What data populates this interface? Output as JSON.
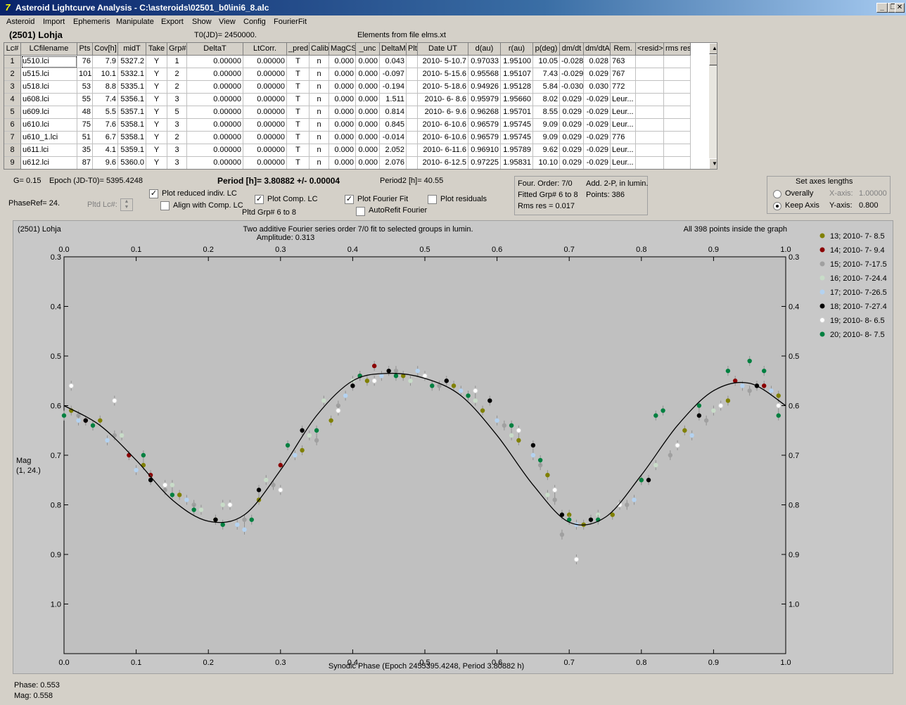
{
  "window": {
    "title": "Asteroid Lightcurve Analysis - C:\\asteroids\\02501_b0\\ini6_8.alc",
    "app_icon": "7",
    "min": "_",
    "max": "❐",
    "close": "✕"
  },
  "menu": [
    "Asteroid",
    "Import",
    "Ephemeris",
    "Manipulate",
    "Export",
    "Show",
    "View",
    "Config",
    "FourierFit"
  ],
  "header": {
    "object": "(2501) Lohja",
    "t0": "T0(JD)= 2450000.",
    "elements": "Elements from file elms.xt"
  },
  "table": {
    "columns": [
      "Lc#",
      "LCfilename",
      "Pts",
      "Cov[h]",
      "midT",
      "Take",
      "Grp#",
      "DeltaT",
      "LtCorr.",
      "_pred.",
      "Calib.",
      "MagCS",
      "_unc",
      "DeltaM",
      "Plt",
      "Date UT",
      "d(au)",
      "r(au)",
      "p(deg)",
      "dm/dt",
      "dm/dtA",
      "Rem.",
      "<resid>",
      "rms res"
    ],
    "rows": [
      [
        "1",
        "u510.lci",
        "76",
        "7.9",
        "5327.2",
        "Y",
        "1",
        "0.00000",
        "0.00000",
        "T",
        "n",
        "0.000",
        "0.000",
        "0.043",
        "",
        "2010- 5-10.7",
        "0.97033",
        "1.95100",
        "10.05",
        "-0.028",
        "0.028",
        "763",
        "",
        ""
      ],
      [
        "2",
        "u515.lci",
        "101",
        "10.1",
        "5332.1",
        "Y",
        "2",
        "0.00000",
        "0.00000",
        "T",
        "n",
        "0.000",
        "0.000",
        "-0.097",
        "",
        "2010- 5-15.6",
        "0.95568",
        "1.95107",
        "7.43",
        "-0.029",
        "0.029",
        "767",
        "",
        ""
      ],
      [
        "3",
        "u518.lci",
        "53",
        "8.8",
        "5335.1",
        "Y",
        "2",
        "0.00000",
        "0.00000",
        "T",
        "n",
        "0.000",
        "0.000",
        "-0.194",
        "",
        "2010- 5-18.6",
        "0.94926",
        "1.95128",
        "5.84",
        "-0.030",
        "0.030",
        "772",
        "",
        ""
      ],
      [
        "4",
        "u608.lci",
        "55",
        "7.4",
        "5356.1",
        "Y",
        "3",
        "0.00000",
        "0.00000",
        "T",
        "n",
        "0.000",
        "0.000",
        "1.511",
        "",
        "2010- 6- 8.6",
        "0.95979",
        "1.95660",
        "8.02",
        "0.029",
        "-0.029",
        "Leur...",
        "",
        ""
      ],
      [
        "5",
        "u609.lci",
        "48",
        "5.5",
        "5357.1",
        "Y",
        "5",
        "0.00000",
        "0.00000",
        "T",
        "n",
        "0.000",
        "0.000",
        "0.814",
        "",
        "2010- 6- 9.6",
        "0.96268",
        "1.95701",
        "8.55",
        "0.029",
        "-0.029",
        "Leur...",
        "",
        ""
      ],
      [
        "6",
        "u610.lci",
        "75",
        "7.6",
        "5358.1",
        "Y",
        "3",
        "0.00000",
        "0.00000",
        "T",
        "n",
        "0.000",
        "0.000",
        "0.845",
        "",
        "2010- 6-10.6",
        "0.96579",
        "1.95745",
        "9.09",
        "0.029",
        "-0.029",
        "Leur...",
        "",
        ""
      ],
      [
        "7",
        "u610_1.lci",
        "51",
        "6.7",
        "5358.1",
        "Y",
        "2",
        "0.00000",
        "0.00000",
        "T",
        "n",
        "0.000",
        "0.000",
        "-0.014",
        "",
        "2010- 6-10.6",
        "0.96579",
        "1.95745",
        "9.09",
        "0.029",
        "-0.029",
        "776",
        "",
        ""
      ],
      [
        "8",
        "u611.lci",
        "35",
        "4.1",
        "5359.1",
        "Y",
        "3",
        "0.00000",
        "0.00000",
        "T",
        "n",
        "0.000",
        "0.000",
        "2.052",
        "",
        "2010- 6-11.6",
        "0.96910",
        "1.95789",
        "9.62",
        "0.029",
        "-0.029",
        "Leur...",
        "",
        ""
      ],
      [
        "9",
        "u612.lci",
        "87",
        "9.6",
        "5360.0",
        "Y",
        "3",
        "0.00000",
        "0.00000",
        "T",
        "n",
        "0.000",
        "0.000",
        "2.076",
        "",
        "2010- 6-12.5",
        "0.97225",
        "1.95831",
        "10.10",
        "0.029",
        "-0.029",
        "Leur...",
        "",
        ""
      ]
    ]
  },
  "params": {
    "g": "G= 0.15",
    "epoch": "Epoch (JD-T0)= 5395.4248",
    "period": "Period [h]= 3.80882 +/- 0.00004",
    "period2": "Period2 [h]= 40.55",
    "phaseref": "PhaseRef= 24.",
    "pltd_lc": "Pltd Lc#:"
  },
  "options": {
    "plot_reduced": {
      "label": "Plot reduced indiv. LC",
      "checked": true
    },
    "align_comp": {
      "label": "Align with Comp. LC",
      "checked": false
    },
    "plot_comp": {
      "label": "Plot Comp. LC",
      "checked": true
    },
    "pltd_grp": "Pltd Grp#  6  to   8",
    "plot_fourier": {
      "label": "Plot Fourier Fit",
      "checked": true
    },
    "autorefit": {
      "label": "AutoRefit Fourier",
      "checked": false
    },
    "plot_residuals": {
      "label": "Plot residuals",
      "checked": false
    }
  },
  "fourier_info": {
    "order": "Four. Order:  7/0",
    "add": "Add. 2-P, in lumin.",
    "fitted": "Fitted Grp# 6 to 8",
    "points": "Points: 386",
    "rms": "Rms res     = 0.017"
  },
  "axes_box": {
    "title": "Set axes lengths",
    "overally": "Overally",
    "keep_axis": "Keep Axis",
    "x_axis_label": "X-axis:",
    "x_axis_value": "1.00000",
    "y_axis_label": "Y-axis:",
    "y_axis_value": "0.800",
    "selected": "keep_axis"
  },
  "plot": {
    "object": "(2501) Lohja",
    "fit_title": "Two additive Fourier series order 7/0 fit to selected groups in lumin.",
    "amplitude": "Amplitude: 0.313",
    "points_inside": "All 398 points inside the graph",
    "ylabel1": "Mag",
    "ylabel2": "(1, 24.)",
    "xlabel": "Synodic Phase (Epoch 2455395.4248, Period 3.80882 h)"
  },
  "status": {
    "phase": "Phase:  0.553",
    "mag": "Mag:   0.558"
  },
  "chart_data": {
    "type": "scatter",
    "xlabel": "Synodic Phase (Epoch 2455395.4248, Period 3.80882 h)",
    "ylabel": "Mag",
    "xlim": [
      0.0,
      1.0
    ],
    "ylim": [
      0.3,
      1.1
    ],
    "y_inverted": true,
    "x_ticks": [
      "0.0",
      "0.1",
      "0.2",
      "0.3",
      "0.4",
      "0.5",
      "0.6",
      "0.7",
      "0.8",
      "0.9",
      "1.0"
    ],
    "y_ticks": [
      "0.3",
      "0.4",
      "0.5",
      "0.6",
      "0.7",
      "0.8",
      "0.9",
      "1.0"
    ],
    "legend_position": "right",
    "series": [
      {
        "name": "13; 2010- 7- 8.5",
        "color": "#808000",
        "points": [
          [
            0.01,
            0.61
          ],
          [
            0.05,
            0.63
          ],
          [
            0.11,
            0.72
          ],
          [
            0.16,
            0.78
          ],
          [
            0.21,
            0.83
          ],
          [
            0.27,
            0.79
          ],
          [
            0.33,
            0.69
          ],
          [
            0.37,
            0.63
          ],
          [
            0.42,
            0.55
          ],
          [
            0.47,
            0.54
          ],
          [
            0.54,
            0.56
          ],
          [
            0.58,
            0.61
          ],
          [
            0.63,
            0.67
          ],
          [
            0.67,
            0.74
          ],
          [
            0.7,
            0.82
          ],
          [
            0.72,
            0.84
          ],
          [
            0.76,
            0.82
          ],
          [
            0.8,
            0.75
          ],
          [
            0.86,
            0.65
          ],
          [
            0.92,
            0.59
          ],
          [
            0.99,
            0.58
          ]
        ]
      },
      {
        "name": "14; 2010- 7- 9.4",
        "color": "#8b0000",
        "points": [
          [
            0.03,
            0.63
          ],
          [
            0.09,
            0.7
          ],
          [
            0.12,
            0.74
          ],
          [
            0.3,
            0.72
          ],
          [
            0.41,
            0.54
          ],
          [
            0.43,
            0.52
          ],
          [
            0.93,
            0.55
          ],
          [
            0.97,
            0.56
          ]
        ]
      },
      {
        "name": "15; 2010- 7-17.5",
        "color": "#a0a0a0",
        "points": [
          [
            0.02,
            0.62
          ],
          [
            0.07,
            0.66
          ],
          [
            0.14,
            0.77
          ],
          [
            0.18,
            0.8
          ],
          [
            0.25,
            0.83
          ],
          [
            0.29,
            0.76
          ],
          [
            0.35,
            0.67
          ],
          [
            0.38,
            0.6
          ],
          [
            0.46,
            0.53
          ],
          [
            0.52,
            0.56
          ],
          [
            0.56,
            0.58
          ],
          [
            0.61,
            0.64
          ],
          [
            0.66,
            0.72
          ],
          [
            0.68,
            0.79
          ],
          [
            0.69,
            0.86
          ],
          [
            0.78,
            0.8
          ],
          [
            0.84,
            0.7
          ],
          [
            0.89,
            0.63
          ],
          [
            0.95,
            0.57
          ]
        ]
      },
      {
        "name": "16; 2010- 7-24.4",
        "color": "#c8dcc8",
        "points": [
          [
            0.04,
            0.64
          ],
          [
            0.08,
            0.66
          ],
          [
            0.15,
            0.76
          ],
          [
            0.19,
            0.81
          ],
          [
            0.22,
            0.8
          ],
          [
            0.28,
            0.75
          ],
          [
            0.34,
            0.66
          ],
          [
            0.36,
            0.59
          ],
          [
            0.4,
            0.55
          ],
          [
            0.48,
            0.55
          ],
          [
            0.57,
            0.59
          ],
          [
            0.62,
            0.66
          ],
          [
            0.67,
            0.78
          ],
          [
            0.74,
            0.82
          ],
          [
            0.82,
            0.72
          ],
          [
            0.9,
            0.61
          ]
        ]
      },
      {
        "name": "17; 2010- 7-26.5",
        "color": "#b4d2f0",
        "points": [
          [
            0.02,
            0.63
          ],
          [
            0.06,
            0.67
          ],
          [
            0.1,
            0.73
          ],
          [
            0.17,
            0.79
          ],
          [
            0.24,
            0.84
          ],
          [
            0.25,
            0.85
          ],
          [
            0.32,
            0.7
          ],
          [
            0.39,
            0.58
          ],
          [
            0.44,
            0.54
          ],
          [
            0.49,
            0.53
          ],
          [
            0.55,
            0.57
          ],
          [
            0.6,
            0.63
          ],
          [
            0.65,
            0.7
          ],
          [
            0.71,
            0.84
          ],
          [
            0.79,
            0.79
          ],
          [
            0.87,
            0.66
          ],
          [
            0.94,
            0.56
          ],
          [
            0.98,
            0.57
          ]
        ]
      },
      {
        "name": "18; 2010- 7-27.4",
        "color": "#000000",
        "points": [
          [
            0.03,
            0.63
          ],
          [
            0.12,
            0.75
          ],
          [
            0.21,
            0.83
          ],
          [
            0.27,
            0.77
          ],
          [
            0.33,
            0.65
          ],
          [
            0.4,
            0.56
          ],
          [
            0.45,
            0.53
          ],
          [
            0.53,
            0.55
          ],
          [
            0.59,
            0.59
          ],
          [
            0.65,
            0.68
          ],
          [
            0.69,
            0.82
          ],
          [
            0.73,
            0.83
          ],
          [
            0.81,
            0.75
          ],
          [
            0.88,
            0.62
          ],
          [
            0.96,
            0.56
          ]
        ]
      },
      {
        "name": "19; 2010- 8- 6.5",
        "color": "#ffffff",
        "points": [
          [
            0.01,
            0.56
          ],
          [
            0.07,
            0.59
          ],
          [
            0.14,
            0.76
          ],
          [
            0.23,
            0.8
          ],
          [
            0.3,
            0.77
          ],
          [
            0.38,
            0.61
          ],
          [
            0.43,
            0.55
          ],
          [
            0.5,
            0.54
          ],
          [
            0.57,
            0.57
          ],
          [
            0.63,
            0.65
          ],
          [
            0.68,
            0.77
          ],
          [
            0.71,
            0.91
          ],
          [
            0.77,
            0.8
          ],
          [
            0.85,
            0.68
          ],
          [
            0.91,
            0.6
          ],
          [
            0.99,
            0.6
          ]
        ]
      },
      {
        "name": "20; 2010- 8- 7.5",
        "color": "#008040",
        "points": [
          [
            0.0,
            0.62
          ],
          [
            0.04,
            0.64
          ],
          [
            0.11,
            0.7
          ],
          [
            0.15,
            0.78
          ],
          [
            0.18,
            0.81
          ],
          [
            0.22,
            0.84
          ],
          [
            0.26,
            0.83
          ],
          [
            0.31,
            0.68
          ],
          [
            0.35,
            0.65
          ],
          [
            0.41,
            0.54
          ],
          [
            0.46,
            0.54
          ],
          [
            0.51,
            0.56
          ],
          [
            0.56,
            0.58
          ],
          [
            0.62,
            0.64
          ],
          [
            0.66,
            0.71
          ],
          [
            0.7,
            0.83
          ],
          [
            0.74,
            0.83
          ],
          [
            0.8,
            0.75
          ],
          [
            0.82,
            0.62
          ],
          [
            0.83,
            0.61
          ],
          [
            0.88,
            0.6
          ],
          [
            0.92,
            0.53
          ],
          [
            0.95,
            0.51
          ],
          [
            0.97,
            0.53
          ],
          [
            0.99,
            0.62
          ]
        ]
      }
    ],
    "fourier_fit": {
      "phase": [
        0.0,
        0.05,
        0.1,
        0.15,
        0.2,
        0.25,
        0.3,
        0.35,
        0.4,
        0.45,
        0.5,
        0.55,
        0.6,
        0.65,
        0.7,
        0.75,
        0.8,
        0.85,
        0.9,
        0.95,
        1.0
      ],
      "mag": [
        0.6,
        0.64,
        0.71,
        0.79,
        0.833,
        0.82,
        0.73,
        0.62,
        0.55,
        0.535,
        0.545,
        0.58,
        0.66,
        0.76,
        0.835,
        0.825,
        0.74,
        0.64,
        0.57,
        0.555,
        0.6
      ]
    }
  }
}
